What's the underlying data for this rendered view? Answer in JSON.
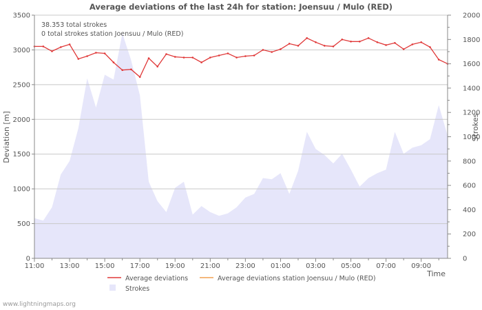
{
  "chart_data": {
    "type": "line",
    "title": "Average deviations of the last 24h for station: Joensuu / Mulo (RED)",
    "annotations": [
      "38.353 total strokes",
      "0 total strokes station Joensuu / Mulo (RED)"
    ],
    "ylabel": "Deviation  [m]",
    "y2label": "Strokes",
    "xlabel": "Time",
    "ylim": [
      0,
      3500
    ],
    "y2lim": [
      0,
      2000
    ],
    "yticks": [
      "0",
      "500",
      "1000",
      "1500",
      "2000",
      "2500",
      "3000",
      "3500"
    ],
    "y2ticks": [
      "0",
      "200",
      "400",
      "600",
      "800",
      "1000",
      "1200",
      "1400",
      "1600",
      "1800",
      "2000"
    ],
    "xlim": [
      0,
      23.5
    ],
    "xticks": [
      {
        "h": 0,
        "label": "11:00"
      },
      {
        "h": 2,
        "label": "13:00"
      },
      {
        "h": 4,
        "label": "15:00"
      },
      {
        "h": 6,
        "label": "17:00"
      },
      {
        "h": 8,
        "label": "19:00"
      },
      {
        "h": 10,
        "label": "21:00"
      },
      {
        "h": 12,
        "label": "23:00"
      },
      {
        "h": 14,
        "label": "01:00"
      },
      {
        "h": 16,
        "label": "03:00"
      },
      {
        "h": 18,
        "label": "05:00"
      },
      {
        "h": 20,
        "label": "07:00"
      },
      {
        "h": 22,
        "label": "09:00"
      }
    ],
    "x_step_hours": 0.5,
    "series": [
      {
        "name": "Average deviations",
        "axis": "left",
        "color": "#e03838",
        "values": [
          3050,
          3050,
          2980,
          3040,
          3080,
          2870,
          2910,
          2960,
          2950,
          2820,
          2710,
          2720,
          2610,
          2880,
          2760,
          2940,
          2900,
          2890,
          2890,
          2820,
          2890,
          2920,
          2950,
          2890,
          2910,
          2920,
          3000,
          2970,
          3010,
          3090,
          3060,
          3170,
          3110,
          3060,
          3050,
          3150,
          3120,
          3120,
          3170,
          3110,
          3070,
          3100,
          3010,
          3080,
          3110,
          3040,
          2860,
          2800
        ]
      },
      {
        "name": "Average deviations station Joensuu / Mulo (RED)",
        "axis": "left",
        "color": "#f0a050",
        "values": []
      },
      {
        "name": "Strokes",
        "axis": "right",
        "color": "#e6e6fa",
        "values": [
          330,
          310,
          420,
          690,
          800,
          1070,
          1480,
          1240,
          1510,
          1470,
          1850,
          1630,
          1340,
          630,
          470,
          380,
          580,
          630,
          360,
          430,
          380,
          350,
          370,
          420,
          500,
          530,
          660,
          650,
          700,
          530,
          720,
          1040,
          900,
          850,
          780,
          860,
          730,
          590,
          660,
          700,
          730,
          1040,
          860,
          910,
          930,
          980,
          1260,
          1010
        ]
      }
    ],
    "legend": [
      {
        "label": "Average deviations",
        "kind": "line",
        "color": "#e03838"
      },
      {
        "label": "Average deviations station Joensuu / Mulo (RED)",
        "kind": "line",
        "color": "#f0a050"
      },
      {
        "label": "Strokes",
        "kind": "area",
        "color": "#e6e6fa"
      }
    ],
    "footer": "www.lightningmaps.org"
  }
}
